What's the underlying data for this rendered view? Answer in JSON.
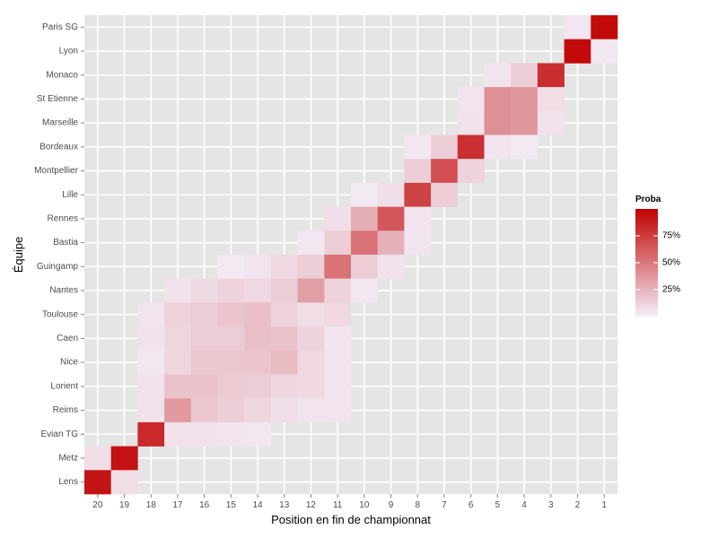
{
  "chart_data": {
    "type": "heatmap",
    "xlabel": "Position en fin de championnat",
    "ylabel": "Équipe",
    "x_categories": [
      "20",
      "19",
      "18",
      "17",
      "16",
      "15",
      "14",
      "13",
      "12",
      "11",
      "10",
      "9",
      "8",
      "7",
      "6",
      "5",
      "4",
      "3",
      "2",
      "1"
    ],
    "y_categories": [
      "Paris SG",
      "Lyon",
      "Monaco",
      "St Etienne",
      "Marseille",
      "Bordeaux",
      "Montpellier",
      "Lille",
      "Rennes",
      "Bastia",
      "Guingamp",
      "Nantes",
      "Toulouse",
      "Caen",
      "Nice",
      "Lorient",
      "Reims",
      "Evian TG",
      "Metz",
      "Lens"
    ],
    "legend": {
      "title": "Proba",
      "labels": [
        "75%",
        "50%",
        "25%"
      ],
      "label_values": [
        0.75,
        0.5,
        0.25
      ],
      "range": [
        0,
        1
      ],
      "placement": "right"
    },
    "colors": {
      "low": "#f4f0fa",
      "high": "#c00000",
      "panel": "#e5e5e5",
      "grid": "#ffffff"
    },
    "grid": true,
    "values": [
      {
        "team": "Paris SG",
        "pos": "2",
        "p": 0.04
      },
      {
        "team": "Paris SG",
        "pos": "1",
        "p": 0.96
      },
      {
        "team": "Lyon",
        "pos": "2",
        "p": 0.96
      },
      {
        "team": "Lyon",
        "pos": "1",
        "p": 0.04
      },
      {
        "team": "Monaco",
        "pos": "5",
        "p": 0.05
      },
      {
        "team": "Monaco",
        "pos": "4",
        "p": 0.14
      },
      {
        "team": "Monaco",
        "pos": "3",
        "p": 0.81
      },
      {
        "team": "St Etienne",
        "pos": "6",
        "p": 0.05
      },
      {
        "team": "St Etienne",
        "pos": "5",
        "p": 0.4
      },
      {
        "team": "St Etienne",
        "pos": "4",
        "p": 0.37
      },
      {
        "team": "St Etienne",
        "pos": "3",
        "p": 0.08
      },
      {
        "team": "Marseille",
        "pos": "6",
        "p": 0.06
      },
      {
        "team": "Marseille",
        "pos": "5",
        "p": 0.4
      },
      {
        "team": "Marseille",
        "pos": "4",
        "p": 0.37
      },
      {
        "team": "Marseille",
        "pos": "3",
        "p": 0.06
      },
      {
        "team": "Bordeaux",
        "pos": "8",
        "p": 0.04
      },
      {
        "team": "Bordeaux",
        "pos": "7",
        "p": 0.14
      },
      {
        "team": "Bordeaux",
        "pos": "6",
        "p": 0.8
      },
      {
        "team": "Bordeaux",
        "pos": "5",
        "p": 0.05
      },
      {
        "team": "Bordeaux",
        "pos": "4",
        "p": 0.03
      },
      {
        "team": "Montpellier",
        "pos": "8",
        "p": 0.14
      },
      {
        "team": "Montpellier",
        "pos": "7",
        "p": 0.67
      },
      {
        "team": "Montpellier",
        "pos": "6",
        "p": 0.12
      },
      {
        "team": "Lille",
        "pos": "10",
        "p": 0.03
      },
      {
        "team": "Lille",
        "pos": "9",
        "p": 0.07
      },
      {
        "team": "Lille",
        "pos": "8",
        "p": 0.73
      },
      {
        "team": "Lille",
        "pos": "7",
        "p": 0.14
      },
      {
        "team": "Rennes",
        "pos": "11",
        "p": 0.07
      },
      {
        "team": "Rennes",
        "pos": "10",
        "p": 0.28
      },
      {
        "team": "Rennes",
        "pos": "9",
        "p": 0.64
      },
      {
        "team": "Rennes",
        "pos": "8",
        "p": 0.05
      },
      {
        "team": "Bastia",
        "pos": "12",
        "p": 0.04
      },
      {
        "team": "Bastia",
        "pos": "11",
        "p": 0.15
      },
      {
        "team": "Bastia",
        "pos": "10",
        "p": 0.52
      },
      {
        "team": "Bastia",
        "pos": "9",
        "p": 0.26
      },
      {
        "team": "Bastia",
        "pos": "8",
        "p": 0.05
      },
      {
        "team": "Guingamp",
        "pos": "15",
        "p": 0.03
      },
      {
        "team": "Guingamp",
        "pos": "14",
        "p": 0.05
      },
      {
        "team": "Guingamp",
        "pos": "13",
        "p": 0.1
      },
      {
        "team": "Guingamp",
        "pos": "12",
        "p": 0.14
      },
      {
        "team": "Guingamp",
        "pos": "11",
        "p": 0.52
      },
      {
        "team": "Guingamp",
        "pos": "10",
        "p": 0.14
      },
      {
        "team": "Guingamp",
        "pos": "9",
        "p": 0.06
      },
      {
        "team": "Nantes",
        "pos": "17",
        "p": 0.06
      },
      {
        "team": "Nantes",
        "pos": "16",
        "p": 0.09
      },
      {
        "team": "Nantes",
        "pos": "15",
        "p": 0.12
      },
      {
        "team": "Nantes",
        "pos": "14",
        "p": 0.1
      },
      {
        "team": "Nantes",
        "pos": "13",
        "p": 0.15
      },
      {
        "team": "Nantes",
        "pos": "12",
        "p": 0.34
      },
      {
        "team": "Nantes",
        "pos": "11",
        "p": 0.12
      },
      {
        "team": "Nantes",
        "pos": "10",
        "p": 0.04
      },
      {
        "team": "Toulouse",
        "pos": "18",
        "p": 0.05
      },
      {
        "team": "Toulouse",
        "pos": "17",
        "p": 0.12
      },
      {
        "team": "Toulouse",
        "pos": "16",
        "p": 0.15
      },
      {
        "team": "Toulouse",
        "pos": "15",
        "p": 0.18
      },
      {
        "team": "Toulouse",
        "pos": "14",
        "p": 0.21
      },
      {
        "team": "Toulouse",
        "pos": "13",
        "p": 0.12
      },
      {
        "team": "Toulouse",
        "pos": "12",
        "p": 0.08
      },
      {
        "team": "Toulouse",
        "pos": "11",
        "p": 0.1
      },
      {
        "team": "Caen",
        "pos": "18",
        "p": 0.06
      },
      {
        "team": "Caen",
        "pos": "17",
        "p": 0.11
      },
      {
        "team": "Caen",
        "pos": "16",
        "p": 0.15
      },
      {
        "team": "Caen",
        "pos": "15",
        "p": 0.15
      },
      {
        "team": "Caen",
        "pos": "14",
        "p": 0.2
      },
      {
        "team": "Caen",
        "pos": "13",
        "p": 0.19
      },
      {
        "team": "Caen",
        "pos": "12",
        "p": 0.12
      },
      {
        "team": "Caen",
        "pos": "11",
        "p": 0.05
      },
      {
        "team": "Nice",
        "pos": "18",
        "p": 0.04
      },
      {
        "team": "Nice",
        "pos": "17",
        "p": 0.11
      },
      {
        "team": "Nice",
        "pos": "16",
        "p": 0.17
      },
      {
        "team": "Nice",
        "pos": "15",
        "p": 0.17
      },
      {
        "team": "Nice",
        "pos": "14",
        "p": 0.18
      },
      {
        "team": "Nice",
        "pos": "13",
        "p": 0.22
      },
      {
        "team": "Nice",
        "pos": "12",
        "p": 0.1
      },
      {
        "team": "Nice",
        "pos": "11",
        "p": 0.05
      },
      {
        "team": "Lorient",
        "pos": "18",
        "p": 0.06
      },
      {
        "team": "Lorient",
        "pos": "17",
        "p": 0.19
      },
      {
        "team": "Lorient",
        "pos": "16",
        "p": 0.19
      },
      {
        "team": "Lorient",
        "pos": "15",
        "p": 0.16
      },
      {
        "team": "Lorient",
        "pos": "14",
        "p": 0.15
      },
      {
        "team": "Lorient",
        "pos": "13",
        "p": 0.11
      },
      {
        "team": "Lorient",
        "pos": "12",
        "p": 0.1
      },
      {
        "team": "Lorient",
        "pos": "11",
        "p": 0.05
      },
      {
        "team": "Reims",
        "pos": "18",
        "p": 0.06
      },
      {
        "team": "Reims",
        "pos": "17",
        "p": 0.36
      },
      {
        "team": "Reims",
        "pos": "16",
        "p": 0.17
      },
      {
        "team": "Reims",
        "pos": "15",
        "p": 0.14
      },
      {
        "team": "Reims",
        "pos": "14",
        "p": 0.11
      },
      {
        "team": "Reims",
        "pos": "13",
        "p": 0.07
      },
      {
        "team": "Reims",
        "pos": "12",
        "p": 0.05
      },
      {
        "team": "Reims",
        "pos": "11",
        "p": 0.05
      },
      {
        "team": "Evian TG",
        "pos": "18",
        "p": 0.83
      },
      {
        "team": "Evian TG",
        "pos": "17",
        "p": 0.06
      },
      {
        "team": "Evian TG",
        "pos": "16",
        "p": 0.06
      },
      {
        "team": "Evian TG",
        "pos": "15",
        "p": 0.05
      },
      {
        "team": "Evian TG",
        "pos": "14",
        "p": 0.04
      },
      {
        "team": "Metz",
        "pos": "20",
        "p": 0.08
      },
      {
        "team": "Metz",
        "pos": "19",
        "p": 0.92
      },
      {
        "team": "Lens",
        "pos": "20",
        "p": 0.92
      },
      {
        "team": "Lens",
        "pos": "19",
        "p": 0.08
      }
    ]
  }
}
